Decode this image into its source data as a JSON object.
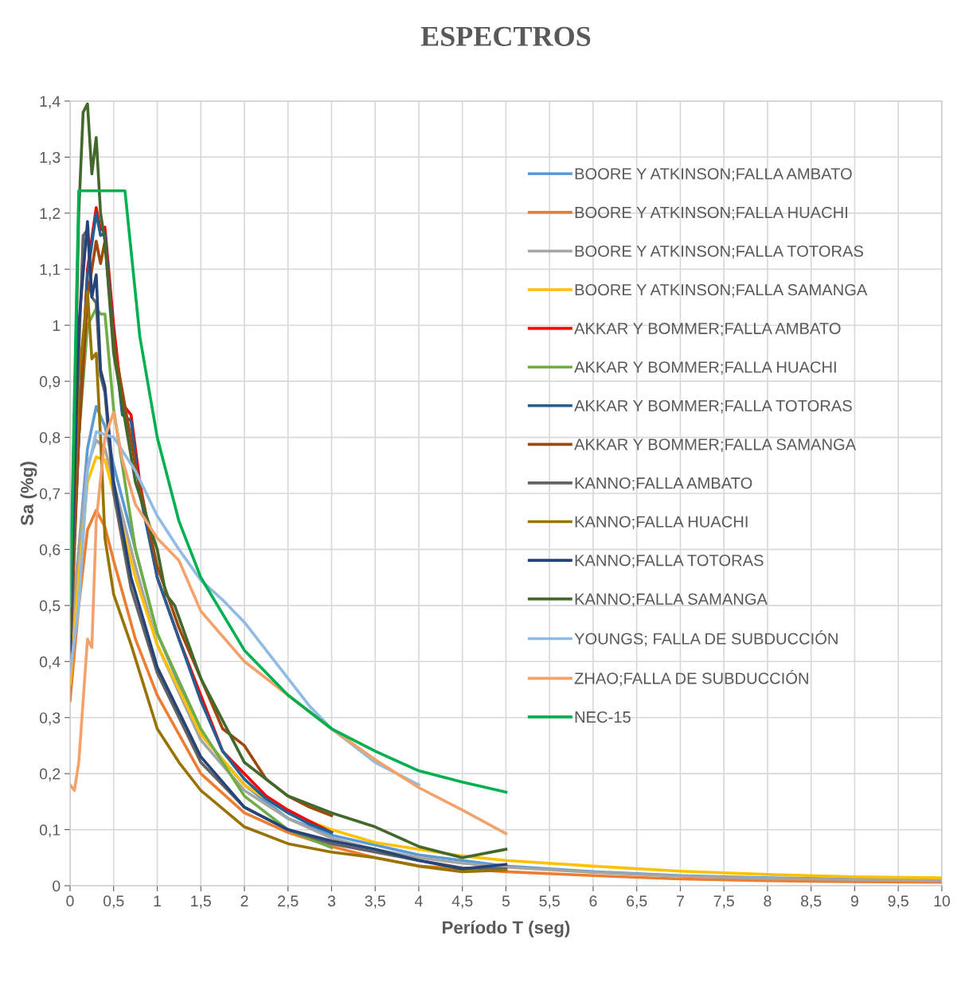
{
  "chart_data": {
    "type": "line",
    "title": "ESPECTROS",
    "xlabel": "Período T (seg)",
    "ylabel": "Sa (%g)",
    "xlim": [
      0,
      10
    ],
    "ylim": [
      0,
      1.4
    ],
    "xticks": [
      0,
      {
        "value": 0.5,
        "label": "0,5"
      },
      1,
      {
        "value": 1.5,
        "label": "1,5"
      },
      2,
      {
        "value": 2.5,
        "label": "2,5"
      },
      3,
      {
        "value": 3.5,
        "label": "3,5"
      },
      4,
      {
        "value": 4.5,
        "label": "4,5"
      },
      5,
      {
        "value": 5.5,
        "label": "5,5"
      },
      6,
      {
        "value": 6.5,
        "label": "6,5"
      },
      7,
      {
        "value": 7.5,
        "label": "7,5"
      },
      8,
      {
        "value": 8.5,
        "label": "8,5"
      },
      9,
      {
        "value": 9.5,
        "label": "9,5"
      },
      10
    ],
    "yticks": [
      0,
      {
        "value": 0.1,
        "label": "0,1"
      },
      {
        "value": 0.2,
        "label": "0,2"
      },
      {
        "value": 0.3,
        "label": "0,3"
      },
      {
        "value": 0.4,
        "label": "0,4"
      },
      {
        "value": 0.5,
        "label": "0,5"
      },
      {
        "value": 0.6,
        "label": "0,6"
      },
      {
        "value": 0.7,
        "label": "0,7"
      },
      {
        "value": 0.8,
        "label": "0,8"
      },
      {
        "value": 0.9,
        "label": "0,9"
      },
      1,
      {
        "value": 1.1,
        "label": "1,1"
      },
      {
        "value": 1.2,
        "label": "1,2"
      },
      {
        "value": 1.3,
        "label": "1,3"
      },
      {
        "value": 1.4,
        "label": "1,4"
      }
    ],
    "grid": true,
    "legend": "top right",
    "marker": "none",
    "line_style": "solid",
    "series": [
      {
        "name": "BOORE Y ATKINSON;FALLA AMBATO",
        "color": "#5b9bd5",
        "x": [
          0,
          0.1,
          0.2,
          0.3,
          0.4,
          0.5,
          0.75,
          1,
          1.5,
          2,
          2.5,
          3,
          4,
          5,
          6,
          7,
          8,
          9,
          10
        ],
        "values": [
          0.43,
          0.6,
          0.78,
          0.855,
          0.82,
          0.75,
          0.6,
          0.45,
          0.27,
          0.18,
          0.12,
          0.09,
          0.055,
          0.035,
          0.025,
          0.018,
          0.014,
          0.012,
          0.01
        ]
      },
      {
        "name": "BOORE Y ATKINSON;FALLA HUACHI",
        "color": "#ed7d31",
        "x": [
          0,
          0.1,
          0.2,
          0.3,
          0.4,
          0.5,
          0.75,
          1,
          1.5,
          2,
          2.5,
          3,
          3.5,
          4,
          5,
          6,
          7,
          8,
          9,
          10
        ],
        "values": [
          0.33,
          0.5,
          0.635,
          0.67,
          0.64,
          0.58,
          0.44,
          0.34,
          0.2,
          0.13,
          0.095,
          0.07,
          0.05,
          0.035,
          0.025,
          0.018,
          0.012,
          0.009,
          0.007,
          0.006
        ]
      },
      {
        "name": "BOORE Y ATKINSON;FALLA TOTORAS",
        "color": "#a5a5a5",
        "x": [
          0,
          0.1,
          0.2,
          0.3,
          0.4,
          0.5,
          0.75,
          1,
          1.5,
          2,
          2.5,
          3,
          3.5,
          4,
          4.5,
          5,
          6,
          7,
          8,
          9,
          10
        ],
        "values": [
          0.42,
          0.6,
          0.75,
          0.795,
          0.78,
          0.72,
          0.57,
          0.43,
          0.26,
          0.17,
          0.12,
          0.085,
          0.065,
          0.05,
          0.04,
          0.033,
          0.024,
          0.017,
          0.013,
          0.011,
          0.009
        ]
      },
      {
        "name": "BOORE Y ATKINSON;FALLA SAMANGA",
        "color": "#ffc000",
        "x": [
          0,
          0.1,
          0.2,
          0.3,
          0.4,
          0.5,
          0.75,
          1,
          1.5,
          2,
          2.5,
          3,
          3.5,
          4,
          4.5,
          5,
          6,
          7,
          8,
          9,
          10
        ],
        "values": [
          0.36,
          0.55,
          0.72,
          0.765,
          0.76,
          0.7,
          0.55,
          0.43,
          0.27,
          0.18,
          0.13,
          0.1,
          0.077,
          0.065,
          0.053,
          0.045,
          0.035,
          0.026,
          0.02,
          0.016,
          0.014
        ]
      },
      {
        "name": "AKKAR Y BOMMER;FALLA AMBATO",
        "color": "#ff0000",
        "x": [
          0.1,
          0.2,
          0.3,
          0.35,
          0.4,
          0.5,
          0.6,
          0.65,
          0.7,
          0.8,
          1,
          1.25,
          1.5,
          1.75,
          2,
          2.25,
          2.5,
          2.75,
          3
        ],
        "values": [
          0.8,
          1.1,
          1.21,
          1.17,
          1.175,
          1.0,
          0.86,
          0.85,
          0.84,
          0.72,
          0.55,
          0.44,
          0.34,
          0.24,
          0.2,
          0.16,
          0.135,
          0.115,
          0.095
        ]
      },
      {
        "name": "AKKAR Y BOMMER;FALLA HUACHI",
        "color": "#70ad47",
        "x": [
          0,
          0.1,
          0.2,
          0.3,
          0.35,
          0.4,
          0.5,
          0.75,
          1,
          1.5,
          2,
          2.5,
          3
        ],
        "values": [
          0.45,
          0.8,
          1.0,
          1.03,
          1.02,
          1.02,
          0.85,
          0.6,
          0.45,
          0.28,
          0.16,
          0.1,
          0.068
        ]
      },
      {
        "name": "AKKAR Y BOMMER;FALLA TOTORAS",
        "color": "#255e91",
        "x": [
          0,
          0.1,
          0.2,
          0.3,
          0.35,
          0.4,
          0.5,
          0.6,
          0.7,
          0.8,
          1,
          1.25,
          1.5,
          1.75,
          2,
          2.25,
          2.5,
          2.75,
          3
        ],
        "values": [
          0.44,
          0.8,
          1.09,
          1.2,
          1.16,
          1.165,
          0.98,
          0.84,
          0.83,
          0.7,
          0.55,
          0.44,
          0.33,
          0.24,
          0.19,
          0.155,
          0.13,
          0.11,
          0.095
        ]
      },
      {
        "name": "AKKAR Y BOMMER;FALLA SAMANGA",
        "color": "#9e480e",
        "x": [
          0,
          0.1,
          0.2,
          0.3,
          0.35,
          0.4,
          0.5,
          0.75,
          1,
          1.25,
          1.5,
          1.75,
          2,
          2.25,
          2.5,
          2.75,
          3
        ],
        "values": [
          0.4,
          0.8,
          1.05,
          1.15,
          1.11,
          1.15,
          0.97,
          0.75,
          0.57,
          0.46,
          0.37,
          0.28,
          0.25,
          0.19,
          0.16,
          0.14,
          0.125
        ]
      },
      {
        "name": "KANNO;FALLA AMBATO",
        "color": "#636363",
        "x": [
          0,
          0.1,
          0.15,
          0.2,
          0.25,
          0.3,
          0.35,
          0.4,
          0.5,
          0.7,
          1,
          1.5,
          2,
          2.5,
          3,
          3.5,
          4,
          4.5,
          5
        ],
        "values": [
          0.4,
          0.95,
          1.16,
          1.17,
          1.05,
          1.04,
          0.91,
          0.88,
          0.7,
          0.53,
          0.38,
          0.22,
          0.14,
          0.1,
          0.075,
          0.06,
          0.045,
          0.032,
          0.03
        ]
      },
      {
        "name": "KANNO;FALLA HUACHI",
        "color": "#997300",
        "x": [
          0,
          0.1,
          0.2,
          0.25,
          0.3,
          0.35,
          0.4,
          0.5,
          0.7,
          1,
          1.25,
          1.5,
          2,
          2.5,
          3,
          3.5,
          4,
          4.5,
          5
        ],
        "values": [
          0.45,
          0.9,
          1.06,
          0.94,
          0.95,
          0.8,
          0.62,
          0.52,
          0.43,
          0.28,
          0.22,
          0.17,
          0.105,
          0.075,
          0.06,
          0.05,
          0.035,
          0.025,
          0.028
        ]
      },
      {
        "name": "KANNO;FALLA TOTORAS",
        "color": "#264478",
        "x": [
          0,
          0.1,
          0.2,
          0.25,
          0.3,
          0.35,
          0.4,
          0.5,
          0.7,
          1,
          1.5,
          2,
          2.5,
          3,
          3.5,
          4,
          4.5,
          5
        ],
        "values": [
          0.42,
          1.0,
          1.185,
          1.05,
          1.09,
          0.92,
          0.89,
          0.72,
          0.55,
          0.39,
          0.23,
          0.14,
          0.1,
          0.08,
          0.065,
          0.045,
          0.03,
          0.038
        ]
      },
      {
        "name": "KANNO;FALLA SAMANGA",
        "color": "#43682b",
        "x": [
          0,
          0.1,
          0.15,
          0.2,
          0.25,
          0.3,
          0.35,
          0.4,
          0.5,
          0.75,
          1,
          1.1,
          1.2,
          1.5,
          2,
          2.5,
          3,
          3.5,
          4,
          4.5,
          5
        ],
        "values": [
          0.45,
          1.2,
          1.38,
          1.395,
          1.27,
          1.335,
          1.2,
          1.15,
          0.95,
          0.72,
          0.6,
          0.52,
          0.5,
          0.37,
          0.22,
          0.16,
          0.13,
          0.105,
          0.07,
          0.05,
          0.065
        ]
      },
      {
        "name": "YOUNGS; FALLA DE SUBDUCCIÓN",
        "color": "#8fbbe5",
        "x": [
          0,
          0.1,
          0.2,
          0.3,
          0.5,
          0.75,
          1,
          1.25,
          1.5,
          1.75,
          2,
          2.25,
          2.5,
          2.75,
          3,
          3.25,
          3.5,
          4
        ],
        "values": [
          0.38,
          0.5,
          0.74,
          0.81,
          0.8,
          0.74,
          0.66,
          0.6,
          0.545,
          0.51,
          0.47,
          0.42,
          0.37,
          0.32,
          0.28,
          0.25,
          0.22,
          0.18
        ]
      },
      {
        "name": "ZHAO;FALLA DE SUBDUCCIÓN",
        "color": "#f4a26b",
        "x": [
          0,
          0.05,
          0.1,
          0.2,
          0.25,
          0.3,
          0.4,
          0.5,
          0.6,
          0.75,
          1,
          1.25,
          1.5,
          2,
          2.5,
          3,
          3.5,
          4,
          4.5,
          5
        ],
        "values": [
          0.18,
          0.17,
          0.22,
          0.44,
          0.425,
          0.65,
          0.8,
          0.845,
          0.76,
          0.68,
          0.62,
          0.58,
          0.49,
          0.4,
          0.34,
          0.28,
          0.225,
          0.175,
          0.135,
          0.093
        ]
      },
      {
        "name": "NEC-15",
        "color": "#00b050",
        "x": [
          0,
          0.1,
          0.63,
          0.8,
          1,
          1.25,
          1.5,
          2,
          2.5,
          3,
          3.5,
          4,
          4.5,
          5
        ],
        "values": [
          0.5,
          1.24,
          1.24,
          0.98,
          0.8,
          0.65,
          0.55,
          0.42,
          0.34,
          0.28,
          0.24,
          0.205,
          0.185,
          0.167
        ]
      }
    ]
  }
}
